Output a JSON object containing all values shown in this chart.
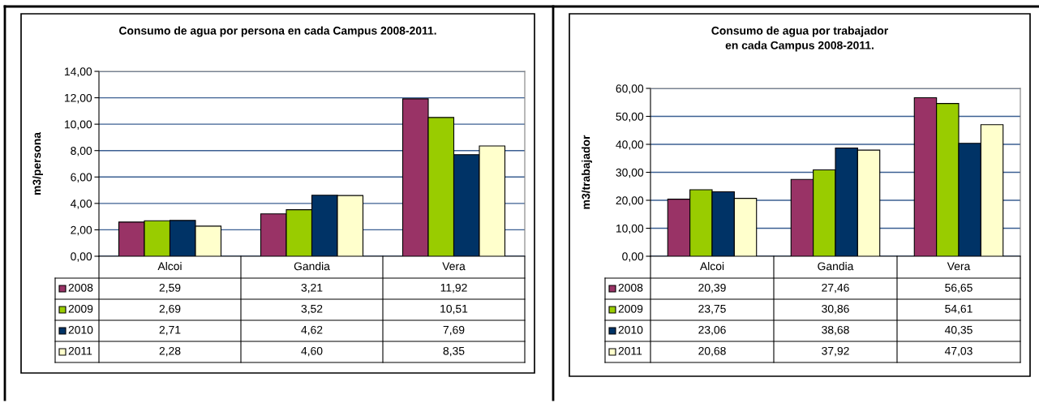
{
  "chart_data": [
    {
      "type": "bar",
      "title": "Consumo de agua por persona en cada Campus 2008-2011.",
      "ylabel": "m3/persona",
      "categories": [
        "Alcoi",
        "Gandia",
        "Vera"
      ],
      "series": [
        {
          "name": "2008",
          "color": "#993366",
          "values": [
            2.59,
            3.21,
            11.92
          ],
          "value_labels": [
            "2,59",
            "3,21",
            "11,92"
          ]
        },
        {
          "name": "2009",
          "color": "#99cc00",
          "values": [
            2.69,
            3.52,
            10.51
          ],
          "value_labels": [
            "2,69",
            "3,52",
            "10,51"
          ]
        },
        {
          "name": "2010",
          "color": "#003366",
          "values": [
            2.71,
            4.62,
            7.69
          ],
          "value_labels": [
            "2,71",
            "4,62",
            "7,69"
          ]
        },
        {
          "name": "2011",
          "color": "#ffffcc",
          "values": [
            2.28,
            4.6,
            8.35
          ],
          "value_labels": [
            "2,28",
            "4,60",
            "8,35"
          ]
        }
      ],
      "ylim": [
        0,
        14
      ],
      "yticks": [
        {
          "value": 0,
          "label": "0,00"
        },
        {
          "value": 2,
          "label": "2,00"
        },
        {
          "value": 4,
          "label": "4,00"
        },
        {
          "value": 6,
          "label": "6,00"
        },
        {
          "value": 8,
          "label": "8,00"
        },
        {
          "value": 10,
          "label": "10,00"
        },
        {
          "value": 12,
          "label": "12,00"
        },
        {
          "value": 14,
          "label": "14,00"
        }
      ],
      "grid": "y",
      "legend": "bottom"
    },
    {
      "type": "bar",
      "title": "Consumo de agua por trabajador\nen cada Campus 2008-2011.",
      "ylabel": "m3/trabajador",
      "categories": [
        "Alcoi",
        "Gandia",
        "Vera"
      ],
      "series": [
        {
          "name": "2008",
          "color": "#993366",
          "values": [
            20.39,
            27.46,
            56.65
          ],
          "value_labels": [
            "20,39",
            "27,46",
            "56,65"
          ]
        },
        {
          "name": "2009",
          "color": "#99cc00",
          "values": [
            23.75,
            30.86,
            54.61
          ],
          "value_labels": [
            "23,75",
            "30,86",
            "54,61"
          ]
        },
        {
          "name": "2010",
          "color": "#003366",
          "values": [
            23.06,
            38.68,
            40.35
          ],
          "value_labels": [
            "23,06",
            "38,68",
            "40,35"
          ]
        },
        {
          "name": "2011",
          "color": "#ffffcc",
          "values": [
            20.68,
            37.92,
            47.03
          ],
          "value_labels": [
            "20,68",
            "37,92",
            "47,03"
          ]
        }
      ],
      "ylim": [
        0,
        60
      ],
      "yticks": [
        {
          "value": 0,
          "label": "0,00"
        },
        {
          "value": 10,
          "label": "10,00"
        },
        {
          "value": 20,
          "label": "20,00"
        },
        {
          "value": 30,
          "label": "30,00"
        },
        {
          "value": 40,
          "label": "40,00"
        },
        {
          "value": 50,
          "label": "50,00"
        },
        {
          "value": 60,
          "label": "60,00"
        }
      ],
      "grid": "y",
      "legend": "bottom"
    }
  ]
}
